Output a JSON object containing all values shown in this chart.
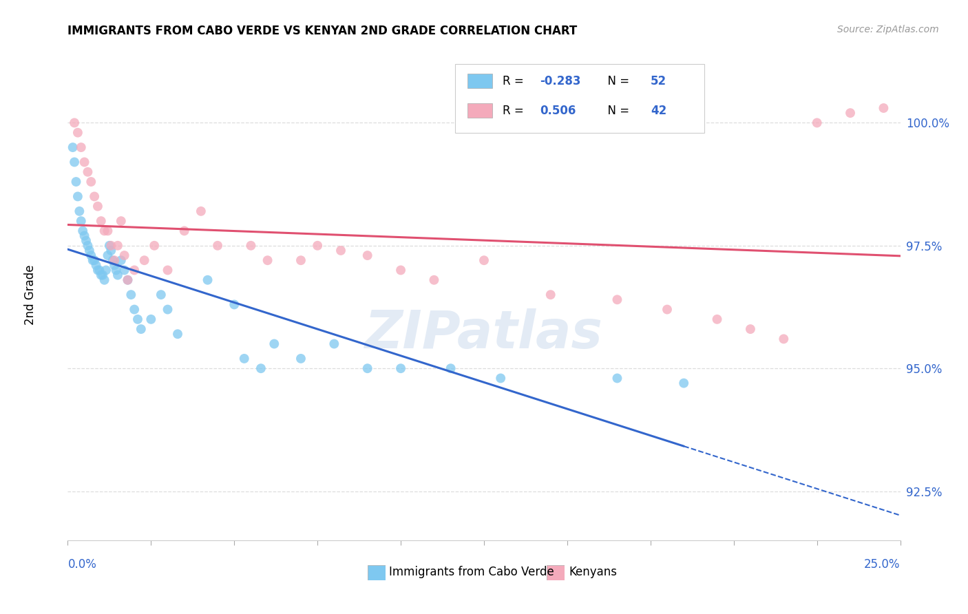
{
  "title": "IMMIGRANTS FROM CABO VERDE VS KENYAN 2ND GRADE CORRELATION CHART",
  "source": "Source: ZipAtlas.com",
  "ylabel": "2nd Grade",
  "xlim": [
    0.0,
    25.0
  ],
  "ylim": [
    91.5,
    101.5
  ],
  "yticks": [
    92.5,
    95.0,
    97.5,
    100.0
  ],
  "ytick_labels": [
    "92.5%",
    "95.0%",
    "97.5%",
    "100.0%"
  ],
  "blue_R": -0.283,
  "blue_N": 52,
  "pink_R": 0.506,
  "pink_N": 42,
  "blue_color": "#7EC8F0",
  "pink_color": "#F4AABB",
  "blue_line_color": "#3366CC",
  "pink_line_color": "#E05070",
  "legend_label_blue": "Immigrants from Cabo Verde",
  "legend_label_pink": "Kenyans",
  "watermark": "ZIPatlas",
  "blue_scatter_x": [
    0.15,
    0.2,
    0.25,
    0.3,
    0.35,
    0.4,
    0.45,
    0.5,
    0.55,
    0.6,
    0.65,
    0.7,
    0.75,
    0.8,
    0.85,
    0.9,
    0.95,
    1.0,
    1.05,
    1.1,
    1.15,
    1.2,
    1.25,
    1.3,
    1.35,
    1.4,
    1.45,
    1.5,
    1.6,
    1.7,
    1.8,
    1.9,
    2.0,
    2.1,
    2.2,
    2.5,
    2.8,
    3.0,
    3.3,
    4.2,
    5.0,
    5.3,
    5.8,
    6.2,
    7.0,
    8.0,
    9.0,
    10.0,
    11.5,
    13.0,
    16.5,
    18.5
  ],
  "blue_scatter_y": [
    99.5,
    99.2,
    98.8,
    98.5,
    98.2,
    98.0,
    97.8,
    97.7,
    97.6,
    97.5,
    97.4,
    97.3,
    97.2,
    97.2,
    97.1,
    97.0,
    97.0,
    96.9,
    96.9,
    96.8,
    97.0,
    97.3,
    97.5,
    97.4,
    97.2,
    97.1,
    97.0,
    96.9,
    97.2,
    97.0,
    96.8,
    96.5,
    96.2,
    96.0,
    95.8,
    96.0,
    96.5,
    96.2,
    95.7,
    96.8,
    96.3,
    95.2,
    95.0,
    95.5,
    95.2,
    95.5,
    95.0,
    95.0,
    95.0,
    94.8,
    94.8,
    94.7
  ],
  "pink_scatter_x": [
    0.2,
    0.3,
    0.4,
    0.5,
    0.6,
    0.7,
    0.8,
    0.9,
    1.0,
    1.1,
    1.2,
    1.3,
    1.4,
    1.5,
    1.6,
    1.7,
    1.8,
    2.0,
    2.3,
    2.6,
    3.0,
    3.5,
    4.0,
    4.5,
    5.5,
    6.0,
    7.0,
    7.5,
    8.2,
    9.0,
    10.0,
    11.0,
    12.5,
    14.5,
    16.5,
    18.0,
    19.5,
    20.5,
    21.5,
    22.5,
    23.5,
    24.5
  ],
  "pink_scatter_y": [
    100.0,
    99.8,
    99.5,
    99.2,
    99.0,
    98.8,
    98.5,
    98.3,
    98.0,
    97.8,
    97.8,
    97.5,
    97.2,
    97.5,
    98.0,
    97.3,
    96.8,
    97.0,
    97.2,
    97.5,
    97.0,
    97.8,
    98.2,
    97.5,
    97.5,
    97.2,
    97.2,
    97.5,
    97.4,
    97.3,
    97.0,
    96.8,
    97.2,
    96.5,
    96.4,
    96.2,
    96.0,
    95.8,
    95.6,
    100.0,
    100.2,
    100.3
  ]
}
